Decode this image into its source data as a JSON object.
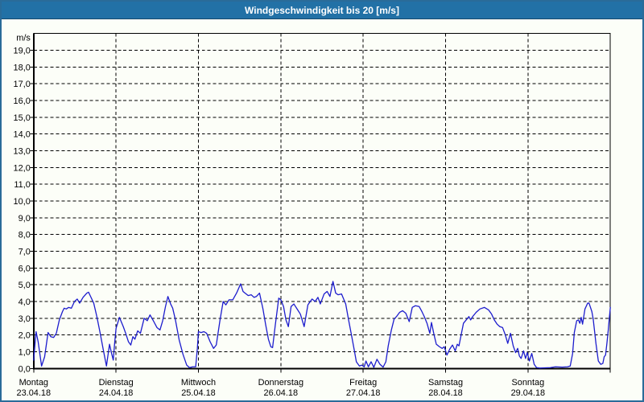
{
  "window": {
    "title": "Windgeschwindigkeit bis 20 [m/s]"
  },
  "colors": {
    "titlebar_bg": "#2271a6",
    "titlebar_text": "#ffffff",
    "titlebar_edge": "#14486e",
    "window_border": "#2a6b99",
    "page_bg": "#fcfef8",
    "grid": "#000000",
    "line": "#1c1ccd"
  },
  "chart_data": {
    "type": "line",
    "title": "Windgeschwindigkeit bis 20 [m/s]",
    "ylabel": "m/s",
    "ylim": [
      0,
      20
    ],
    "ytick_step": 1.0,
    "ytick_labels": [
      "0,0",
      "1,0",
      "2,0",
      "3,0",
      "4,0",
      "5,0",
      "6,0",
      "7,0",
      "8,0",
      "9,0",
      "10,0",
      "11,0",
      "12,0",
      "13,0",
      "14,0",
      "15,0",
      "16,0",
      "17,0",
      "18,0",
      "19,0"
    ],
    "x_unit": "hours",
    "xlim": [
      0,
      168
    ],
    "grid": "dashed",
    "legend": "none",
    "days": [
      {
        "label": "Montag",
        "date": "23.04.18"
      },
      {
        "label": "Dienstag",
        "date": "24.04.18"
      },
      {
        "label": "Mittwoch",
        "date": "25.04.18"
      },
      {
        "label": "Donnerstag",
        "date": "26.04.18"
      },
      {
        "label": "Freitag",
        "date": "27.04.18"
      },
      {
        "label": "Samstag",
        "date": "28.04.18"
      },
      {
        "label": "Sonntag",
        "date": "29.04.18"
      }
    ],
    "series": [
      {
        "name": "Windgeschwindigkeit",
        "color": "#1c1ccd",
        "points": [
          [
            0,
            0.5
          ],
          [
            0.7,
            2.2
          ],
          [
            1.3,
            1.6
          ],
          [
            2.3,
            0.15
          ],
          [
            3.2,
            0.7
          ],
          [
            4.2,
            2.15
          ],
          [
            5,
            1.9
          ],
          [
            5.8,
            1.85
          ],
          [
            6.6,
            2.1
          ],
          [
            7.5,
            2.9
          ],
          [
            8.4,
            3.4
          ],
          [
            8.9,
            3.6
          ],
          [
            9.5,
            3.55
          ],
          [
            10.2,
            3.65
          ],
          [
            11,
            3.6
          ],
          [
            11.9,
            4
          ],
          [
            12.7,
            4.15
          ],
          [
            13.4,
            3.9
          ],
          [
            14.4,
            4.25
          ],
          [
            15.5,
            4.5
          ],
          [
            16,
            4.55
          ],
          [
            16.6,
            4.3
          ],
          [
            17.5,
            3.9
          ],
          [
            18.4,
            3.1
          ],
          [
            19.4,
            2.1
          ],
          [
            20.3,
            1.1
          ],
          [
            21.2,
            0.15
          ],
          [
            22.1,
            1.45
          ],
          [
            22.7,
            0.9
          ],
          [
            23.2,
            0.5
          ],
          [
            23.6,
            1.5
          ],
          [
            24,
            2.4
          ],
          [
            25,
            3.05
          ],
          [
            26.1,
            2.5
          ],
          [
            26.8,
            2.1
          ],
          [
            27.6,
            1.6
          ],
          [
            28.3,
            1.4
          ],
          [
            28.9,
            1.9
          ],
          [
            29.5,
            1.75
          ],
          [
            30.3,
            2.25
          ],
          [
            31.1,
            2.1
          ],
          [
            32.2,
            3
          ],
          [
            33.1,
            2.85
          ],
          [
            33.9,
            3.2
          ],
          [
            35,
            2.8
          ],
          [
            35.9,
            2.45
          ],
          [
            36.8,
            2.3
          ],
          [
            37.6,
            2.85
          ],
          [
            38.4,
            3.7
          ],
          [
            39.1,
            4.3
          ],
          [
            39.9,
            3.85
          ],
          [
            40.5,
            3.6
          ],
          [
            41.3,
            2.9
          ],
          [
            42.4,
            1.7
          ],
          [
            43.5,
            0.85
          ],
          [
            44.6,
            0.2
          ],
          [
            45.4,
            0.05
          ],
          [
            46.3,
            0.1
          ],
          [
            47.2,
            0.1
          ],
          [
            47.7,
            1.2
          ],
          [
            48,
            2.2
          ],
          [
            48.8,
            2.15
          ],
          [
            49.6,
            2.2
          ],
          [
            50.4,
            2.1
          ],
          [
            51.4,
            1.6
          ],
          [
            52.4,
            1.2
          ],
          [
            53.2,
            1.4
          ],
          [
            54.3,
            2.9
          ],
          [
            55.2,
            4
          ],
          [
            56,
            3.8
          ],
          [
            56.9,
            4.1
          ],
          [
            58,
            4.1
          ],
          [
            59.1,
            4.5
          ],
          [
            60.3,
            5.05
          ],
          [
            61,
            4.6
          ],
          [
            61.6,
            4.5
          ],
          [
            62.5,
            4.35
          ],
          [
            63.4,
            4.4
          ],
          [
            64.2,
            4.25
          ],
          [
            64.9,
            4.3
          ],
          [
            65.8,
            4.5
          ],
          [
            66.8,
            3.55
          ],
          [
            67.6,
            2.6
          ],
          [
            68.4,
            1.75
          ],
          [
            69.1,
            1.3
          ],
          [
            69.6,
            1.25
          ],
          [
            70.4,
            2.6
          ],
          [
            71.4,
            4.2
          ],
          [
            72,
            4.1
          ],
          [
            72.8,
            3.7
          ],
          [
            73.5,
            2.9
          ],
          [
            74.2,
            2.5
          ],
          [
            75,
            3.7
          ],
          [
            75.8,
            3.85
          ],
          [
            76.9,
            3.5
          ],
          [
            77.7,
            3.25
          ],
          [
            78.8,
            2.5
          ],
          [
            79.9,
            3.8
          ],
          [
            81.1,
            4.15
          ],
          [
            82,
            4
          ],
          [
            82.8,
            4.25
          ],
          [
            83.5,
            3.85
          ],
          [
            84.6,
            4.45
          ],
          [
            85.5,
            4.6
          ],
          [
            86.3,
            4.3
          ],
          [
            87.2,
            5.2
          ],
          [
            88,
            4.5
          ],
          [
            88.7,
            4.4
          ],
          [
            89.7,
            4.45
          ],
          [
            90.9,
            3.85
          ],
          [
            91.7,
            2.95
          ],
          [
            92.5,
            2.1
          ],
          [
            93.3,
            1.2
          ],
          [
            94,
            0.4
          ],
          [
            94.9,
            0.15
          ],
          [
            95.6,
            0.2
          ],
          [
            96.3,
            0.1
          ],
          [
            96.8,
            0.45
          ],
          [
            97.5,
            0.1
          ],
          [
            98.3,
            0.4
          ],
          [
            99.1,
            0.07
          ],
          [
            100,
            0.55
          ],
          [
            100.9,
            0.25
          ],
          [
            101.8,
            0.08
          ],
          [
            102.6,
            0.4
          ],
          [
            103.3,
            1.35
          ],
          [
            104.2,
            2.3
          ],
          [
            105,
            2.95
          ],
          [
            105.7,
            3.1
          ],
          [
            106.6,
            3.35
          ],
          [
            107.5,
            3.45
          ],
          [
            108.4,
            3.3
          ],
          [
            109.4,
            2.8
          ],
          [
            110.3,
            3.65
          ],
          [
            111.2,
            3.75
          ],
          [
            112.3,
            3.7
          ],
          [
            113.1,
            3.4
          ],
          [
            113.8,
            3.1
          ],
          [
            114.6,
            2.7
          ],
          [
            115.4,
            2.1
          ],
          [
            115.9,
            2.75
          ],
          [
            116.6,
            2.05
          ],
          [
            117.3,
            1.45
          ],
          [
            118.2,
            1.3
          ],
          [
            119,
            1.2
          ],
          [
            119.6,
            1.3
          ],
          [
            120.4,
            0.8
          ],
          [
            121.2,
            1.15
          ],
          [
            122,
            1.4
          ],
          [
            122.8,
            1.05
          ],
          [
            123.4,
            1.45
          ],
          [
            123.9,
            1.35
          ],
          [
            125.2,
            2.7
          ],
          [
            126,
            2.9
          ],
          [
            126.8,
            3.1
          ],
          [
            127.3,
            2.9
          ],
          [
            127.9,
            3.1
          ],
          [
            128.9,
            3.35
          ],
          [
            130,
            3.55
          ],
          [
            131.3,
            3.65
          ],
          [
            132.5,
            3.5
          ],
          [
            133.4,
            3.25
          ],
          [
            134.2,
            2.9
          ],
          [
            135,
            2.65
          ],
          [
            135.8,
            2.5
          ],
          [
            136.6,
            2.45
          ],
          [
            137.4,
            2
          ],
          [
            138.1,
            1.5
          ],
          [
            138.9,
            2.1
          ],
          [
            139.7,
            1.35
          ],
          [
            140.4,
            0.95
          ],
          [
            141,
            1.2
          ],
          [
            141.5,
            0.75
          ],
          [
            142,
            0.6
          ],
          [
            142.7,
            1.05
          ],
          [
            143.3,
            0.6
          ],
          [
            143.8,
            0.95
          ],
          [
            144.4,
            0.45
          ],
          [
            145.1,
            0.9
          ],
          [
            145.8,
            0.25
          ],
          [
            146.5,
            0.05
          ],
          [
            147.5,
            0.03
          ],
          [
            149,
            0.04
          ],
          [
            150.5,
            0.05
          ],
          [
            152,
            0.1
          ],
          [
            154,
            0.08
          ],
          [
            155.5,
            0.1
          ],
          [
            156.3,
            0.15
          ],
          [
            157,
            0.9
          ],
          [
            157.5,
            2.15
          ],
          [
            158.2,
            2.85
          ],
          [
            158.7,
            2.9
          ],
          [
            159.1,
            2.7
          ],
          [
            159.5,
            3.05
          ],
          [
            159.9,
            2.65
          ],
          [
            160.6,
            3.55
          ],
          [
            161.4,
            3.9
          ],
          [
            161.8,
            3.9
          ],
          [
            162.6,
            3.4
          ],
          [
            163,
            2.95
          ],
          [
            163.8,
            1.5
          ],
          [
            164.5,
            0.45
          ],
          [
            165.2,
            0.25
          ],
          [
            165.8,
            0.3
          ],
          [
            166.2,
            0.7
          ],
          [
            166.6,
            0.8
          ],
          [
            167,
            1.5
          ],
          [
            167.4,
            2.3
          ],
          [
            167.7,
            3
          ],
          [
            168,
            3.65
          ]
        ]
      }
    ]
  }
}
